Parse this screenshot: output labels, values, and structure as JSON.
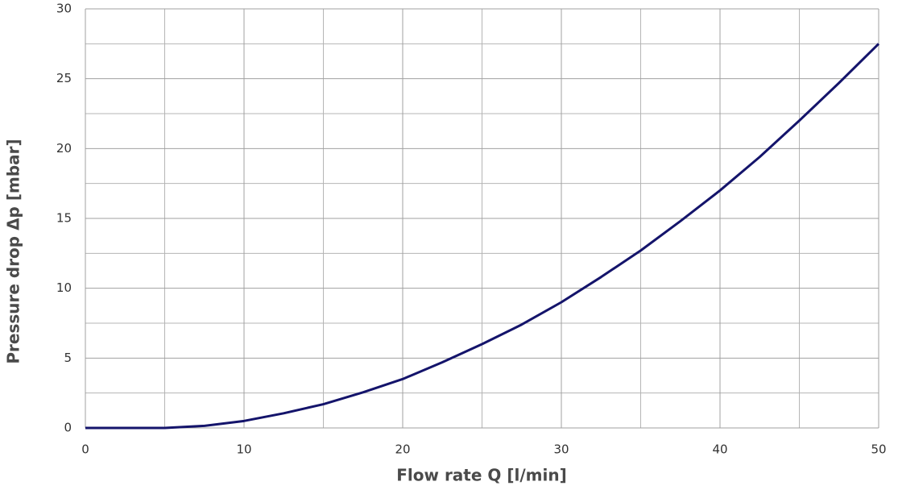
{
  "chart_data": {
    "type": "line",
    "x_label": "Flow rate Q [l/min]",
    "y_label": "Pressure drop Δp [mbar]",
    "x": [
      0,
      2.5,
      5,
      7.5,
      10,
      12.5,
      15,
      17.5,
      20,
      22.5,
      25,
      27.5,
      30,
      32.5,
      35,
      37.5,
      40,
      42.5,
      45,
      47.5,
      50
    ],
    "values": [
      0,
      0,
      0,
      0.15,
      0.5,
      1.05,
      1.7,
      2.55,
      3.5,
      4.7,
      6.0,
      7.4,
      9.0,
      10.8,
      12.7,
      14.8,
      17.0,
      19.4,
      22.0,
      24.7,
      27.5
    ],
    "color": "#14146b",
    "xlim": [
      0,
      50
    ],
    "ylim": [
      0,
      30
    ],
    "xticks": [
      0,
      10,
      20,
      30,
      40,
      50
    ],
    "yticks": [
      0,
      5,
      10,
      15,
      20,
      25,
      30
    ],
    "x_minor_grid": [
      5,
      15,
      25,
      35,
      45
    ],
    "y_minor_grid": [
      2.5,
      7.5,
      12.5,
      17.5,
      22.5,
      27.5
    ],
    "grid": true
  }
}
